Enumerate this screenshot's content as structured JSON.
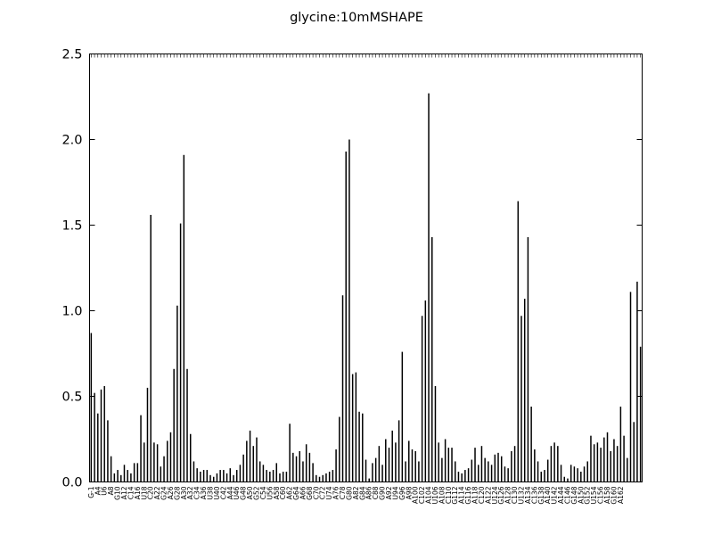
{
  "chart_data": {
    "type": "bar",
    "title": "glycine:10mMSHAPE",
    "xlabel": "",
    "ylabel": "",
    "ylim": [
      0,
      2.5
    ],
    "y_ticks": [
      "0.0",
      "0.5",
      "1.0",
      "1.5",
      "2.0",
      "2.5"
    ],
    "grid": false,
    "legend": "none",
    "bar_color": "#000000",
    "x_tick_labels_visible": [
      "G-1",
      "A4",
      "U6",
      "A8",
      "G10",
      "A12",
      "C14",
      "A16",
      "U18",
      "C20",
      "A22",
      "G24",
      "A26",
      "G28",
      "A30",
      "A32",
      "C34",
      "A36",
      "U38",
      "U40",
      "C42",
      "A44",
      "U46",
      "G48",
      "A50",
      "G52",
      "C54",
      "U56",
      "A58",
      "C60",
      "A62",
      "G64",
      "A66",
      "G68",
      "C70",
      "C72",
      "U74",
      "A76",
      "C78",
      "G80",
      "A82",
      "G84",
      "A86",
      "C88",
      "G90",
      "A92",
      "U94",
      "G96",
      "A98",
      "A100",
      "C102",
      "A104",
      "U106",
      "A108",
      "C110",
      "G112",
      "A114",
      "G116",
      "A118",
      "C120",
      "A122",
      "U124",
      "G126",
      "A128",
      "C130",
      "U132",
      "A134",
      "C136",
      "G138",
      "A140",
      "U142",
      "A144",
      "C146",
      "G148",
      "A150",
      "G152",
      "U154",
      "C156",
      "A158",
      "G160",
      "A162"
    ],
    "values": [
      0.87,
      0.52,
      0.4,
      0.54,
      0.56,
      0.36,
      0.15,
      0.05,
      0.07,
      0.04,
      0.1,
      0.07,
      0.05,
      0.11,
      0.11,
      0.39,
      0.23,
      0.55,
      1.56,
      0.23,
      0.22,
      0.09,
      0.15,
      0.24,
      0.29,
      0.66,
      1.03,
      1.51,
      1.91,
      0.66,
      0.28,
      0.12,
      0.08,
      0.06,
      0.07,
      0.07,
      0.04,
      0.03,
      0.05,
      0.07,
      0.07,
      0.05,
      0.08,
      0.04,
      0.07,
      0.1,
      0.16,
      0.24,
      0.3,
      0.21,
      0.26,
      0.12,
      0.1,
      0.07,
      0.06,
      0.07,
      0.11,
      0.05,
      0.06,
      0.06,
      0.34,
      0.17,
      0.15,
      0.18,
      0.12,
      0.22,
      0.17,
      0.11,
      0.04,
      0.03,
      0.04,
      0.05,
      0.06,
      0.07,
      0.19,
      0.38,
      1.09,
      1.93,
      2.0,
      0.63,
      0.64,
      0.41,
      0.4,
      0.13,
      0.02,
      0.11,
      0.14,
      0.21,
      0.1,
      0.25,
      0.2,
      0.3,
      0.23,
      0.36,
      0.76,
      0.12,
      0.24,
      0.19,
      0.18,
      0.12,
      0.97,
      1.06,
      2.27,
      1.43,
      0.56,
      0.23,
      0.14,
      0.25,
      0.2,
      0.2,
      0.12,
      0.06,
      0.05,
      0.07,
      0.08,
      0.13,
      0.2,
      0.1,
      0.21,
      0.14,
      0.12,
      0.1,
      0.16,
      0.17,
      0.15,
      0.09,
      0.08,
      0.18,
      0.21,
      1.64,
      0.97,
      1.07,
      1.43,
      0.44,
      0.19,
      0.12,
      0.06,
      0.07,
      0.13,
      0.21,
      0.23,
      0.21,
      0.1,
      0.03,
      0.02,
      0.1,
      0.09,
      0.08,
      0.06,
      0.09,
      0.12,
      0.27,
      0.22,
      0.23,
      0.2,
      0.26,
      0.29,
      0.18,
      0.25,
      0.21,
      0.44,
      0.27,
      0.14,
      1.11,
      0.35,
      1.17,
      0.79
    ]
  }
}
